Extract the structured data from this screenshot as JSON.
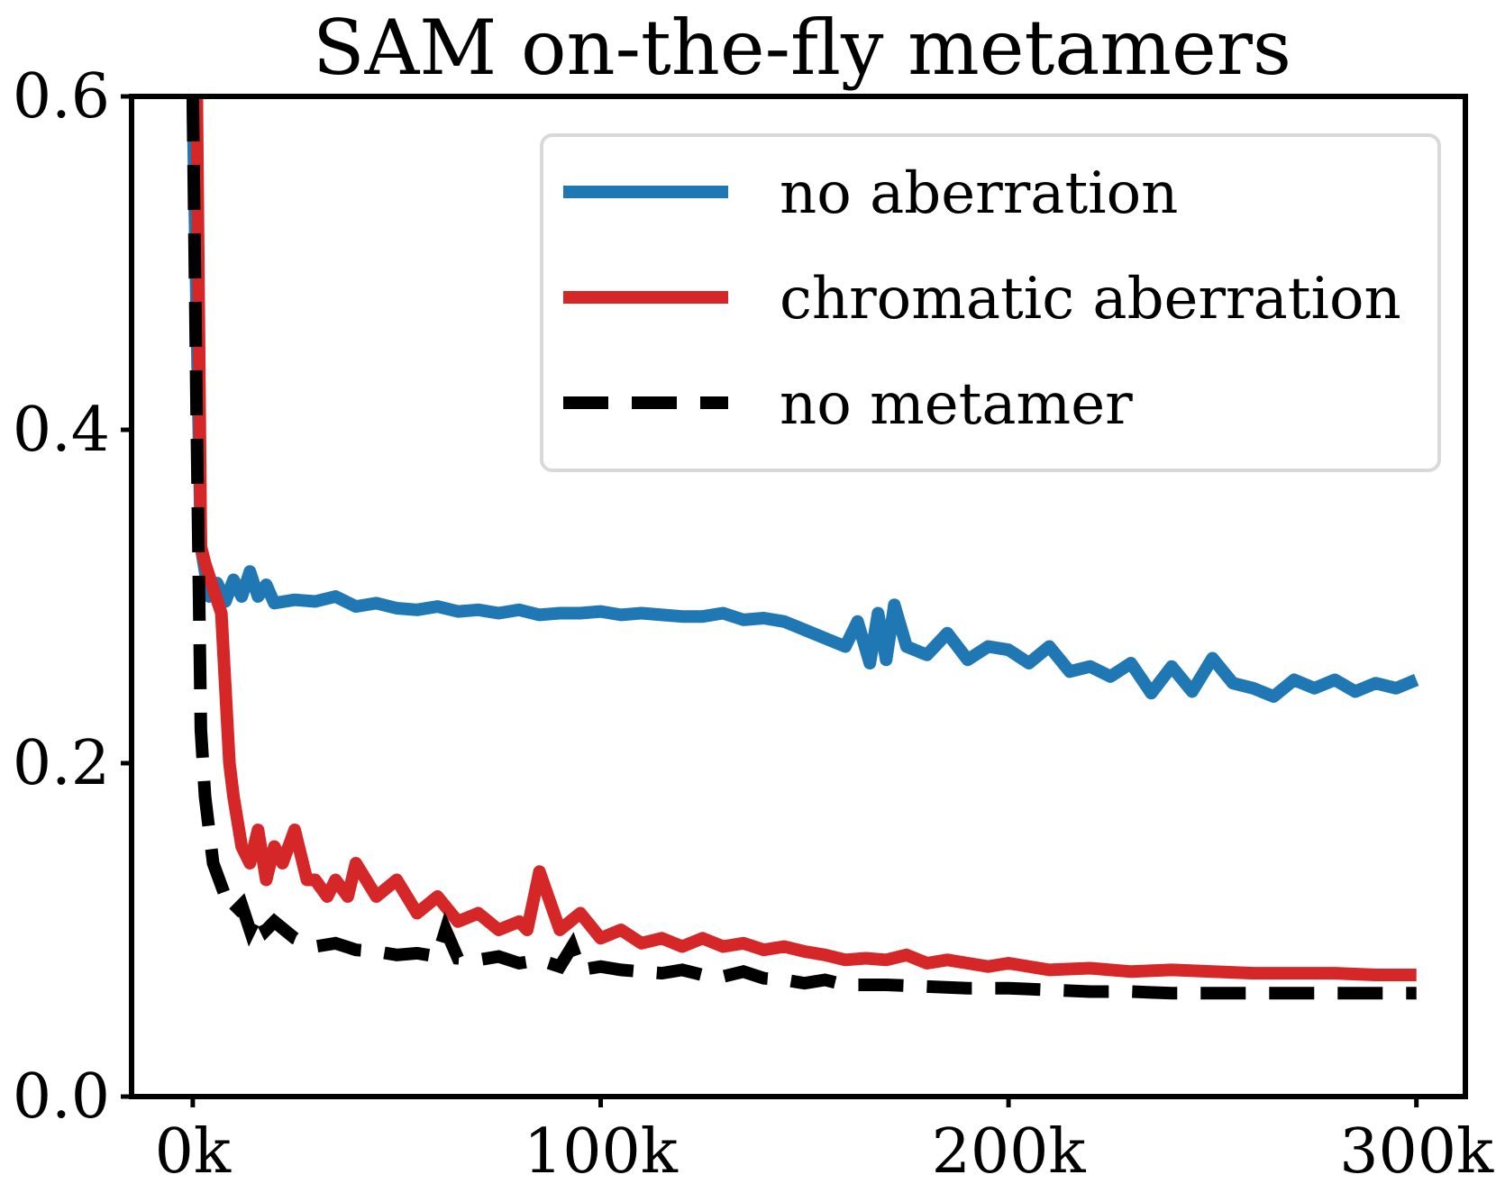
{
  "chart_data": {
    "type": "line",
    "title": "SAM on-the-fly metamers",
    "xlabel": "",
    "ylabel": "",
    "xlim": [
      -15000,
      312000
    ],
    "ylim": [
      0.0,
      0.6
    ],
    "grid": false,
    "x_ticks": [
      {
        "value": 0,
        "label": "0k"
      },
      {
        "value": 100000,
        "label": "100k"
      },
      {
        "value": 200000,
        "label": "200k"
      },
      {
        "value": 300000,
        "label": "300k"
      }
    ],
    "y_ticks": [
      {
        "value": 0.0,
        "label": "0.0"
      },
      {
        "value": 0.2,
        "label": "0.2"
      },
      {
        "value": 0.4,
        "label": "0.4"
      },
      {
        "value": 0.6,
        "label": "0.6"
      }
    ],
    "legend_position": "top-right",
    "series": [
      {
        "name": "no aberration",
        "color": "#1f77b4",
        "style": "solid",
        "x": [
          0,
          2000,
          4000,
          6000,
          8000,
          10000,
          12000,
          14000,
          16000,
          18000,
          20000,
          25000,
          30000,
          35000,
          40000,
          45000,
          50000,
          55000,
          60000,
          65000,
          70000,
          75000,
          80000,
          85000,
          90000,
          95000,
          100000,
          105000,
          110000,
          115000,
          120000,
          125000,
          130000,
          135000,
          140000,
          145000,
          150000,
          155000,
          160000,
          163000,
          166000,
          168000,
          170000,
          172000,
          175000,
          180000,
          185000,
          190000,
          195000,
          200000,
          205000,
          210000,
          215000,
          220000,
          225000,
          230000,
          235000,
          240000,
          245000,
          250000,
          255000,
          260000,
          265000,
          270000,
          275000,
          280000,
          285000,
          290000,
          295000,
          300000
        ],
        "values": [
          0.6,
          0.33,
          0.3,
          0.308,
          0.297,
          0.31,
          0.3,
          0.315,
          0.3,
          0.307,
          0.296,
          0.298,
          0.297,
          0.3,
          0.294,
          0.296,
          0.293,
          0.292,
          0.294,
          0.291,
          0.292,
          0.29,
          0.292,
          0.289,
          0.29,
          0.29,
          0.291,
          0.289,
          0.29,
          0.289,
          0.288,
          0.288,
          0.29,
          0.286,
          0.287,
          0.285,
          0.28,
          0.275,
          0.27,
          0.285,
          0.26,
          0.29,
          0.262,
          0.295,
          0.27,
          0.265,
          0.278,
          0.262,
          0.27,
          0.268,
          0.26,
          0.27,
          0.255,
          0.258,
          0.252,
          0.26,
          0.242,
          0.258,
          0.243,
          0.263,
          0.248,
          0.245,
          0.24,
          0.25,
          0.245,
          0.25,
          0.243,
          0.248,
          0.245,
          0.25
        ]
      },
      {
        "name": "chromatic aberration",
        "color": "#d62728",
        "style": "solid",
        "x": [
          1000,
          2000,
          3000,
          5000,
          7000,
          9000,
          10000,
          12000,
          14000,
          16000,
          18000,
          20000,
          22000,
          25000,
          28000,
          30000,
          33000,
          35000,
          38000,
          40000,
          45000,
          50000,
          55000,
          60000,
          65000,
          70000,
          75000,
          80000,
          82000,
          85000,
          90000,
          95000,
          100000,
          105000,
          110000,
          115000,
          120000,
          125000,
          130000,
          135000,
          140000,
          145000,
          150000,
          155000,
          160000,
          165000,
          170000,
          175000,
          180000,
          185000,
          190000,
          195000,
          200000,
          210000,
          220000,
          230000,
          240000,
          250000,
          260000,
          270000,
          280000,
          290000,
          300000
        ],
        "values": [
          0.6,
          0.33,
          0.32,
          0.305,
          0.29,
          0.2,
          0.18,
          0.15,
          0.14,
          0.16,
          0.13,
          0.15,
          0.14,
          0.16,
          0.13,
          0.13,
          0.12,
          0.13,
          0.12,
          0.14,
          0.12,
          0.13,
          0.11,
          0.12,
          0.105,
          0.11,
          0.1,
          0.105,
          0.1,
          0.135,
          0.1,
          0.11,
          0.095,
          0.1,
          0.092,
          0.095,
          0.09,
          0.095,
          0.09,
          0.092,
          0.088,
          0.09,
          0.087,
          0.085,
          0.082,
          0.083,
          0.082,
          0.085,
          0.08,
          0.082,
          0.08,
          0.078,
          0.08,
          0.076,
          0.077,
          0.075,
          0.076,
          0.075,
          0.074,
          0.074,
          0.074,
          0.073,
          0.073
        ]
      },
      {
        "name": "no metamer",
        "color": "#000000",
        "style": "dashed",
        "x": [
          0,
          1000,
          2000,
          3000,
          5000,
          8000,
          10000,
          12000,
          14000,
          16000,
          18000,
          20000,
          25000,
          30000,
          35000,
          40000,
          45000,
          50000,
          55000,
          60000,
          62000,
          65000,
          70000,
          75000,
          80000,
          85000,
          90000,
          93000,
          95000,
          100000,
          105000,
          110000,
          115000,
          120000,
          125000,
          130000,
          135000,
          140000,
          145000,
          150000,
          155000,
          160000,
          170000,
          180000,
          190000,
          200000,
          210000,
          220000,
          230000,
          240000,
          250000,
          260000,
          270000,
          280000,
          290000,
          300000
        ],
        "values": [
          0.6,
          0.4,
          0.22,
          0.18,
          0.14,
          0.12,
          0.11,
          0.115,
          0.1,
          0.11,
          0.1,
          0.105,
          0.095,
          0.09,
          0.092,
          0.088,
          0.087,
          0.085,
          0.086,
          0.084,
          0.1,
          0.083,
          0.082,
          0.084,
          0.08,
          0.082,
          0.078,
          0.09,
          0.076,
          0.078,
          0.076,
          0.075,
          0.074,
          0.076,
          0.073,
          0.072,
          0.075,
          0.071,
          0.07,
          0.068,
          0.07,
          0.067,
          0.067,
          0.066,
          0.065,
          0.065,
          0.064,
          0.063,
          0.063,
          0.062,
          0.062,
          0.062,
          0.062,
          0.062,
          0.062,
          0.062
        ]
      }
    ]
  }
}
